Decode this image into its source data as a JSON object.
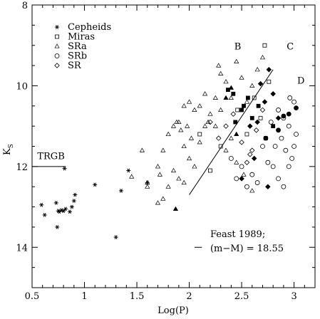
{
  "chart_data": {
    "type": "scatter",
    "xlabel": "Log(P)",
    "ylabel": "K",
    "ylabel_sub": "S",
    "xlim": [
      0.5,
      3.2
    ],
    "ylim": [
      15,
      8
    ],
    "y_inverted": true,
    "xticks": [
      "0.5",
      "1",
      "1.5",
      "2",
      "2.5",
      "3"
    ],
    "yticks": [
      "8",
      "10",
      "12",
      "14"
    ],
    "legend_position": "top-left",
    "series": [
      {
        "name": "Cepheids",
        "marker": "asterisk",
        "points": [
          [
            0.59,
            12.95
          ],
          [
            0.62,
            13.2
          ],
          [
            0.73,
            12.9
          ],
          [
            0.75,
            13.1
          ],
          [
            0.76,
            13.12
          ],
          [
            0.78,
            13.08
          ],
          [
            0.8,
            13.1
          ],
          [
            0.82,
            13.05
          ],
          [
            0.74,
            13.5
          ],
          [
            0.81,
            12.05
          ],
          [
            0.86,
            13.12
          ],
          [
            0.88,
            13.0
          ],
          [
            0.9,
            12.85
          ],
          [
            0.91,
            12.7
          ],
          [
            1.1,
            12.45
          ],
          [
            1.3,
            13.75
          ],
          [
            1.35,
            12.6
          ],
          [
            1.42,
            12.1
          ],
          [
            1.6,
            12.4
          ]
        ]
      },
      {
        "name": "Miras",
        "marker": "open-square",
        "points": [
          [
            2.72,
            9.0
          ],
          [
            2.76,
            9.9
          ],
          [
            2.46,
            10.6
          ],
          [
            2.55,
            11.2
          ],
          [
            2.62,
            10.3
          ],
          [
            2.68,
            10.8
          ],
          [
            2.1,
            11.2
          ],
          [
            2.2,
            12.1
          ],
          [
            2.3,
            11.5
          ]
        ]
      },
      {
        "name": "SRa",
        "marker": "open-triangle",
        "points": [
          [
            1.45,
            12.25
          ],
          [
            1.55,
            11.6
          ],
          [
            1.6,
            12.4
          ],
          [
            1.72,
            12.2
          ],
          [
            1.75,
            11.6
          ],
          [
            1.8,
            11.2
          ],
          [
            1.85,
            11.0
          ],
          [
            1.9,
            10.9
          ],
          [
            1.95,
            10.5
          ],
          [
            2.0,
            10.4
          ],
          [
            2.05,
            10.6
          ],
          [
            2.1,
            10.5
          ],
          [
            2.15,
            10.2
          ],
          [
            2.2,
            10.7
          ],
          [
            2.25,
            11.0
          ],
          [
            2.28,
            9.5
          ],
          [
            2.3,
            9.7
          ],
          [
            2.35,
            9.9
          ],
          [
            2.4,
            10.3
          ],
          [
            2.45,
            9.4
          ],
          [
            2.5,
            9.8
          ],
          [
            2.55,
            10.4
          ],
          [
            2.6,
            10.0
          ],
          [
            2.65,
            9.6
          ],
          [
            2.7,
            9.3
          ],
          [
            1.95,
            11.5
          ],
          [
            2.0,
            11.8
          ],
          [
            2.05,
            12.0
          ],
          [
            2.1,
            11.4
          ],
          [
            2.15,
            11.0
          ],
          [
            1.8,
            12.5
          ],
          [
            1.85,
            12.1
          ],
          [
            1.9,
            12.3
          ],
          [
            1.95,
            12.4
          ],
          [
            1.6,
            12.5
          ],
          [
            1.7,
            12.0
          ],
          [
            1.88,
            10.9
          ],
          [
            1.92,
            11.1
          ],
          [
            1.98,
            11.0
          ],
          [
            2.02,
            11.3
          ],
          [
            1.75,
            12.8
          ],
          [
            1.7,
            12.9
          ],
          [
            2.35,
            11.6
          ],
          [
            2.4,
            11.3
          ],
          [
            2.45,
            11.9
          ],
          [
            2.52,
            12.2
          ],
          [
            2.6,
            12.6
          ],
          [
            2.3,
            10.6
          ],
          [
            2.18,
            10.9
          ],
          [
            2.25,
            10.3
          ]
        ]
      },
      {
        "name": "SRb",
        "marker": "open-circle",
        "points": [
          [
            2.85,
            10.6
          ],
          [
            2.9,
            10.8
          ],
          [
            2.95,
            11.0
          ],
          [
            3.0,
            10.4
          ],
          [
            2.88,
            11.3
          ],
          [
            2.92,
            11.6
          ],
          [
            2.98,
            11.8
          ],
          [
            3.02,
            11.2
          ],
          [
            2.8,
            12.0
          ],
          [
            2.85,
            12.3
          ],
          [
            2.9,
            12.5
          ],
          [
            2.95,
            12.0
          ],
          [
            2.7,
            11.5
          ],
          [
            2.75,
            11.9
          ],
          [
            2.6,
            12.2
          ],
          [
            2.65,
            12.4
          ],
          [
            2.55,
            12.5
          ],
          [
            2.5,
            12.0
          ],
          [
            2.45,
            12.3
          ],
          [
            2.4,
            11.8
          ],
          [
            2.82,
            11.5
          ],
          [
            2.78,
            10.9
          ],
          [
            2.73,
            11.3
          ],
          [
            2.96,
            10.3
          ],
          [
            3.0,
            11.5
          ]
        ]
      },
      {
        "name": "SR",
        "marker": "open-diamond",
        "points": [
          [
            2.2,
            10.9
          ],
          [
            2.28,
            11.3
          ],
          [
            2.35,
            11.0
          ],
          [
            2.42,
            10.7
          ],
          [
            2.5,
            11.4
          ],
          [
            2.58,
            11.7
          ],
          [
            2.64,
            11.1
          ],
          [
            2.7,
            10.6
          ],
          [
            2.6,
            11.6
          ],
          [
            2.55,
            11.9
          ]
        ]
      },
      {
        "name": "",
        "marker": "filled-square",
        "points": [
          [
            2.37,
            10.1
          ],
          [
            2.42,
            10.2
          ],
          [
            2.5,
            10.6
          ],
          [
            2.56,
            10.3
          ],
          [
            2.6,
            10.8
          ],
          [
            2.66,
            10.5
          ],
          [
            2.73,
            11.3
          ],
          [
            2.8,
            11.0
          ],
          [
            2.44,
            10.9
          ],
          [
            2.52,
            10.5
          ]
        ]
      },
      {
        "name": "",
        "marker": "filled-diamond",
        "points": [
          [
            2.68,
            9.95
          ],
          [
            2.76,
            9.6
          ],
          [
            2.8,
            10.2
          ],
          [
            2.72,
            10.4
          ],
          [
            2.65,
            10.9
          ],
          [
            2.58,
            11.0
          ],
          [
            2.85,
            10.8
          ],
          [
            2.75,
            12.5
          ],
          [
            2.5,
            12.3
          ],
          [
            2.62,
            11.8
          ]
        ]
      },
      {
        "name": "",
        "marker": "filled-triangle",
        "points": [
          [
            1.87,
            13.05
          ],
          [
            2.35,
            10.3
          ],
          [
            2.45,
            11.2
          ],
          [
            2.4,
            10.05
          ]
        ]
      },
      {
        "name": "",
        "marker": "filled-circle",
        "points": [
          [
            2.95,
            10.7
          ],
          [
            2.9,
            10.75
          ],
          [
            3.02,
            10.55
          ],
          [
            2.85,
            11.1
          ]
        ]
      }
    ],
    "lines": [
      {
        "name": "TRGB",
        "x": [
          0.5,
          0.82
        ],
        "y": [
          12.0,
          12.0
        ]
      },
      {
        "name": "fit",
        "x": [
          2.0,
          2.8
        ],
        "y": [
          12.7,
          9.6
        ]
      },
      {
        "name": "feast-dash",
        "x": [
          2.05,
          2.12
        ],
        "y": [
          14.0,
          14.0
        ]
      }
    ],
    "annotations": [
      {
        "text": "TRGB",
        "x": 0.55,
        "y": 11.82
      },
      {
        "text": "B",
        "x": 2.43,
        "y": 9.1
      },
      {
        "text": "C",
        "x": 2.93,
        "y": 9.1
      },
      {
        "text": "D",
        "x": 3.03,
        "y": 9.95
      },
      {
        "text": "Feast 1989;",
        "x": 2.2,
        "y": 13.75
      },
      {
        "text": "(m−M) = 18.55",
        "x": 2.2,
        "y": 14.1
      }
    ]
  }
}
